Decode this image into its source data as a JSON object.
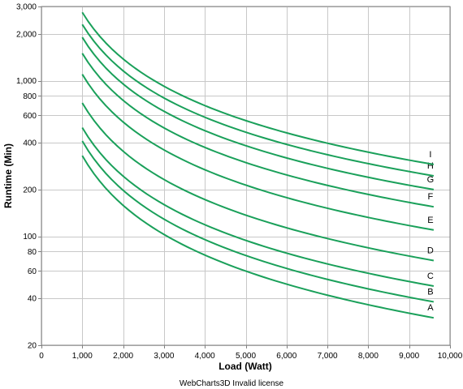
{
  "chart_data": {
    "type": "line",
    "xlabel": "Load (Watt)",
    "ylabel": "Runtime (Min)",
    "xlim": [
      0,
      10000
    ],
    "ylim": [
      20,
      3000
    ],
    "y_scale": "log",
    "grid": true,
    "x_ticks": [
      0,
      1000,
      2000,
      3000,
      4000,
      5000,
      6000,
      7000,
      8000,
      9000,
      10000
    ],
    "x_tick_labels": [
      "0",
      "1,000",
      "2,000",
      "3,000",
      "4,000",
      "5,000",
      "6,000",
      "7,000",
      "8,000",
      "9,000",
      "10,000"
    ],
    "y_ticks": [
      20,
      40,
      60,
      80,
      100,
      200,
      400,
      600,
      800,
      1000,
      2000,
      3000
    ],
    "y_tick_labels": [
      "20",
      "40",
      "60",
      "80",
      "100",
      "200",
      "400",
      "600",
      "800",
      "1,000",
      "2,000",
      "3,000"
    ],
    "line_color": "#1aa05a",
    "series": [
      {
        "name": "A",
        "points": [
          [
            1000,
            330
          ],
          [
            9600,
            30
          ]
        ]
      },
      {
        "name": "B",
        "points": [
          [
            1000,
            410
          ],
          [
            9600,
            38
          ]
        ]
      },
      {
        "name": "C",
        "points": [
          [
            1000,
            500
          ],
          [
            9600,
            48
          ]
        ]
      },
      {
        "name": "D",
        "points": [
          [
            1000,
            720
          ],
          [
            9600,
            70
          ]
        ]
      },
      {
        "name": "E",
        "points": [
          [
            1000,
            1100
          ],
          [
            9600,
            110
          ]
        ]
      },
      {
        "name": "F",
        "points": [
          [
            1000,
            1500
          ],
          [
            9600,
            155
          ]
        ]
      },
      {
        "name": "G",
        "points": [
          [
            1000,
            1900
          ],
          [
            9600,
            200
          ]
        ]
      },
      {
        "name": "H",
        "points": [
          [
            1000,
            2300
          ],
          [
            9600,
            245
          ]
        ]
      },
      {
        "name": "I",
        "points": [
          [
            1000,
            2750
          ],
          [
            9600,
            290
          ]
        ]
      }
    ]
  },
  "footer": "WebCharts3D Invalid license"
}
